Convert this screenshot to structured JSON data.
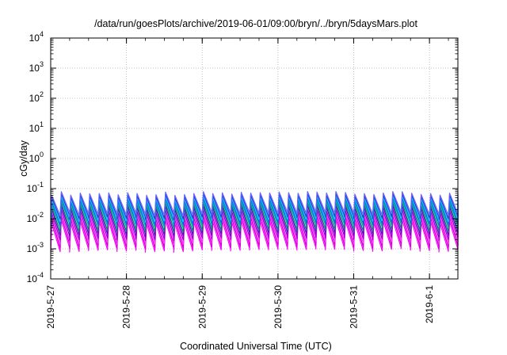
{
  "chart_data": {
    "type": "line",
    "title": "/data/run/goesPlots/archive/2019-06-01/09:00/bryn/../bryn/5daysMars.plot",
    "xlabel": "Coordinated Universal Time (UTC)",
    "ylabel": "cGy/day",
    "x_ticks": [
      "2019-5-27",
      "2019-5-28",
      "2019-5-29",
      "2019-5-30",
      "2019-5-31",
      "2019-6-1"
    ],
    "xlim": [
      "2019-05-27 00:00",
      "2019-06-01 09:00"
    ],
    "y_scale": "log",
    "ylim": [
      0.0001,
      10000
    ],
    "y_ticks": [
      {
        "base": "10",
        "exp": "-4"
      },
      {
        "base": "10",
        "exp": "-3"
      },
      {
        "base": "10",
        "exp": "-2"
      },
      {
        "base": "10",
        "exp": "-1"
      },
      {
        "base": "10",
        "exp": "0"
      },
      {
        "base": "10",
        "exp": "1"
      },
      {
        "base": "10",
        "exp": "2"
      },
      {
        "base": "10",
        "exp": "3"
      },
      {
        "base": "10",
        "exp": "4"
      }
    ],
    "grid": true,
    "legend": "none",
    "sawtooth_period_hours": 3,
    "series": [
      {
        "color": "#ff00ff",
        "peak": 0.008,
        "trough": 0.0009
      },
      {
        "color": "#cc00cc",
        "peak": 0.011,
        "trough": 0.0012
      },
      {
        "color": "#ff33ff",
        "peak": 0.014,
        "trough": 0.0016
      },
      {
        "color": "#9900cc",
        "peak": 0.018,
        "trough": 0.0022
      },
      {
        "color": "#6600cc",
        "peak": 0.024,
        "trough": 0.003
      },
      {
        "color": "#008080",
        "peak": 0.03,
        "trough": 0.004
      },
      {
        "color": "#00aa88",
        "peak": 0.038,
        "trough": 0.0055
      },
      {
        "color": "#0066ff",
        "peak": 0.045,
        "trough": 0.007
      },
      {
        "color": "#00ccff",
        "peak": 0.05,
        "trough": 0.009
      },
      {
        "color": "#3333cc",
        "peak": 0.06,
        "trough": 0.011
      },
      {
        "color": "#6666ff",
        "peak": 0.07,
        "trough": 0.014
      }
    ]
  }
}
